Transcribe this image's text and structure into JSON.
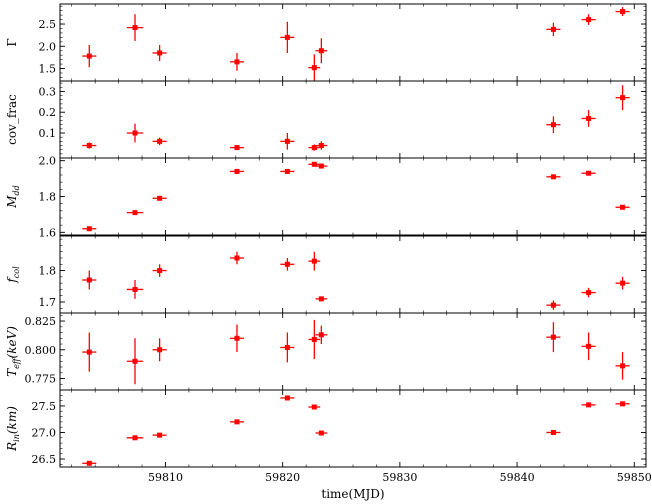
{
  "chart_data": {
    "type": "scatter",
    "marker_color": "#ff0000",
    "x": [
      59803.5,
      59807.4,
      59809.5,
      59816.1,
      59820.4,
      59822.7,
      59823.3,
      59843.1,
      59846.1,
      59849.0
    ],
    "x_err": [
      0.6,
      0.7,
      0.6,
      0.6,
      0.6,
      0.5,
      0.5,
      0.6,
      0.6,
      0.6
    ],
    "xlabel": "time(MJD)",
    "xlim": [
      59801,
      59851
    ],
    "xticks": [
      59810,
      59820,
      59830,
      59840,
      59850
    ],
    "panels": [
      {
        "ylabel": "Γ",
        "ylim": [
          1.22,
          2.95
        ],
        "yticks": [
          "1.5",
          "2.0",
          "2.5"
        ],
        "ytick_values": [
          1.5,
          2.0,
          2.5
        ],
        "y": [
          1.78,
          2.42,
          1.85,
          1.65,
          2.2,
          1.52,
          1.9,
          2.38,
          2.6,
          2.78
        ],
        "y_err": [
          0.25,
          0.3,
          0.18,
          0.2,
          0.35,
          0.3,
          0.28,
          0.15,
          0.12,
          0.1
        ]
      },
      {
        "ylabel": "cov_frac",
        "ylim": [
          -0.02,
          0.35
        ],
        "yticks": [
          "0.1",
          "0.2",
          "0.3"
        ],
        "ytick_values": [
          0.1,
          0.2,
          0.3
        ],
        "y": [
          0.04,
          0.1,
          0.06,
          0.03,
          0.06,
          0.03,
          0.04,
          0.14,
          0.17,
          0.27
        ],
        "y_err": [
          0.015,
          0.045,
          0.018,
          0.01,
          0.04,
          0.015,
          0.02,
          0.04,
          0.04,
          0.06
        ]
      },
      {
        "ylabel": "M_dd",
        "ylim": [
          1.585,
          2.015
        ],
        "yticks": [
          "1.6",
          "1.8",
          "2.0"
        ],
        "ytick_values": [
          1.6,
          1.8,
          2.0
        ],
        "y": [
          1.62,
          1.71,
          1.79,
          1.94,
          1.94,
          1.98,
          1.97,
          1.91,
          1.93,
          1.74
        ],
        "y_err": [
          0.01,
          0.01,
          0.006,
          0.006,
          0.008,
          0.008,
          0.006,
          0.008,
          0.006,
          0.006
        ]
      },
      {
        "ylabel": "f_col",
        "ylim": [
          1.665,
          1.91
        ],
        "yticks": [
          "1.7",
          "1.8"
        ],
        "ytick_values": [
          1.7,
          1.8
        ],
        "y": [
          1.77,
          1.74,
          1.8,
          1.84,
          1.82,
          1.83,
          1.71,
          1.69,
          1.73,
          1.76
        ],
        "y_err": [
          0.03,
          0.03,
          0.02,
          0.02,
          0.02,
          0.03,
          0.005,
          0.015,
          0.015,
          0.02
        ]
      },
      {
        "ylabel": "T_eff(keV)",
        "ylim": [
          0.765,
          0.832
        ],
        "yticks": [
          "0.775",
          "0.800",
          "0.825"
        ],
        "ytick_values": [
          0.775,
          0.8,
          0.825
        ],
        "y": [
          0.798,
          0.79,
          0.8,
          0.81,
          0.802,
          0.809,
          0.813,
          0.811,
          0.803,
          0.786
        ],
        "y_err": [
          0.017,
          0.02,
          0.01,
          0.012,
          0.013,
          0.017,
          0.008,
          0.013,
          0.012,
          0.012
        ]
      },
      {
        "ylabel": "R_in(km)",
        "ylim": [
          26.35,
          27.8
        ],
        "yticks": [
          "26.5",
          "27.0",
          "27.5"
        ],
        "ytick_values": [
          26.5,
          27.0,
          27.5
        ],
        "y": [
          26.42,
          26.9,
          26.95,
          27.2,
          27.65,
          27.48,
          26.99,
          27.0,
          27.52,
          27.54
        ],
        "y_err": [
          0.01,
          0.01,
          0.01,
          0.01,
          0.01,
          0.01,
          0.01,
          0.01,
          0.01,
          0.01
        ]
      }
    ]
  }
}
